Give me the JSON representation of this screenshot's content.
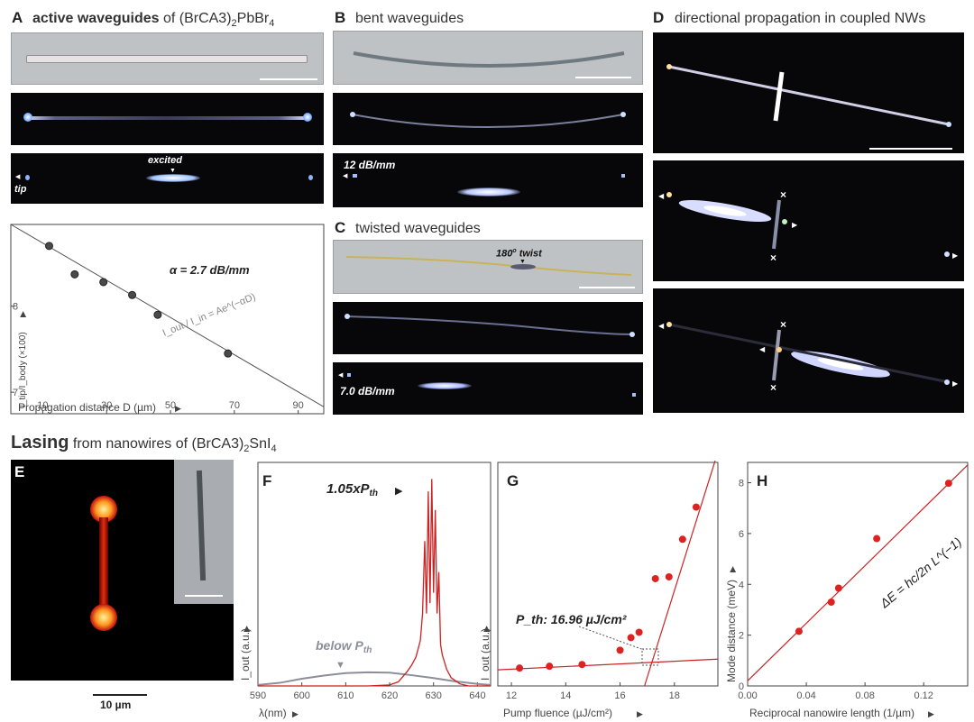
{
  "panels": {
    "A": {
      "letter": "A",
      "title_bold": "active waveguides",
      "title_rest": " of (BrCA3)",
      "title_sub": "2",
      "title_tail": "PbBr",
      "title_sub2": "4",
      "label_excited": "excited",
      "label_tip": "tip"
    },
    "B": {
      "letter": "B",
      "title": "bent waveguides",
      "loss_label": "12 dB/mm"
    },
    "C": {
      "letter": "C",
      "title": "twisted waveguides",
      "twist_label": "180",
      "twist_sup": "o",
      "twist_tail": " twist",
      "loss_label": "7.0 dB/mm"
    },
    "D": {
      "letter": "D",
      "title": "directional propagation in coupled NWs"
    },
    "E": {
      "letter": "E",
      "scalebar_label": "10 µm"
    },
    "F": {
      "letter": "F"
    },
    "G": {
      "letter": "G"
    },
    "H": {
      "letter": "H"
    }
  },
  "section2": {
    "title_bold": "Lasing",
    "title_rest": " from nanowires of (BrCA3)",
    "title_sub": "2",
    "title_tail": "SnI",
    "title_sub2": "4"
  },
  "chart_data": [
    {
      "id": "A-plot",
      "type": "scatter",
      "x": [
        12,
        20,
        29,
        38,
        46,
        68
      ],
      "y": [
        8.7,
        8.37,
        8.28,
        8.13,
        7.9,
        7.45
      ],
      "fit_line": {
        "x": [
          0,
          98
        ],
        "y": [
          8.95,
          6.83
        ]
      },
      "xlim": [
        0,
        98
      ],
      "ylim": [
        6.75,
        8.95
      ],
      "xticks": [
        10,
        30,
        50,
        70,
        90
      ],
      "yticks": [
        7,
        8
      ],
      "xlabel": "Propagation distance D (µm)",
      "ylabel": "I_tip/I_body (×100)",
      "annotation": "α = 2.7 dB/mm",
      "equation": "I_out / I_in = Ae^(−αD)"
    },
    {
      "id": "F",
      "type": "line",
      "xlim": [
        590,
        643
      ],
      "ylim": [
        0,
        1.08
      ],
      "xticks": [
        590,
        600,
        610,
        620,
        630,
        640
      ],
      "xlabel": "λ(nm)",
      "ylabel": "I_out (a.u.)",
      "series": [
        {
          "name": "1.05xP_th",
          "color": "#cc2222",
          "x": [
            590,
            600,
            610,
            615,
            620,
            622,
            624,
            625,
            626,
            627,
            627.5,
            628,
            628.4,
            628.8,
            629.2,
            629.6,
            630,
            630.4,
            630.8,
            631.2,
            631.6,
            632,
            633,
            634,
            636,
            638,
            643
          ],
          "y": [
            0,
            0,
            0,
            0,
            0.005,
            0.02,
            0.07,
            0.1,
            0.14,
            0.22,
            0.35,
            0.7,
            0.35,
            0.94,
            0.4,
            1.0,
            0.45,
            0.85,
            0.35,
            0.55,
            0.2,
            0.15,
            0.08,
            0.04,
            0.01,
            0,
            0
          ]
        },
        {
          "name": "below P_th",
          "color": "#8a8f9a",
          "x": [
            590,
            595,
            600,
            605,
            610,
            615,
            620,
            625,
            630,
            635,
            640,
            643
          ],
          "y": [
            0.005,
            0.015,
            0.035,
            0.05,
            0.062,
            0.066,
            0.064,
            0.052,
            0.038,
            0.022,
            0.01,
            0.005
          ]
        }
      ],
      "annotations": [
        {
          "text": "1.05xP",
          "sub": "th"
        },
        {
          "text": "below P",
          "sub": "th"
        }
      ]
    },
    {
      "id": "G",
      "type": "scatter",
      "x": [
        12.3,
        13.4,
        14.6,
        16.0,
        16.4,
        16.7,
        17.3,
        17.8,
        18.3,
        18.8
      ],
      "y": [
        0.1,
        0.11,
        0.12,
        0.2,
        0.27,
        0.3,
        0.6,
        0.61,
        0.82,
        1.0
      ],
      "fit_lines": [
        {
          "x": [
            11.5,
            19.6
          ],
          "y": [
            0.09,
            0.15
          ]
        },
        {
          "x": [
            16.9,
            19.5
          ],
          "y": [
            0.0,
            1.26
          ]
        }
      ],
      "xlim": [
        11.5,
        19.6
      ],
      "ylim": [
        0,
        1.25
      ],
      "xticks": [
        12,
        14,
        16,
        18
      ],
      "xlabel": "Pump fluence (µJ/cm²)",
      "ylabel": "I_out (a.u.)",
      "annotation": "P_th: 16.96 µJ/cm²"
    },
    {
      "id": "H",
      "type": "scatter",
      "x": [
        0.035,
        0.057,
        0.062,
        0.088,
        0.137
      ],
      "y": [
        2.15,
        3.3,
        3.85,
        5.8,
        7.98
      ],
      "fit_line": {
        "x": [
          0,
          0.15
        ],
        "y": [
          0.2,
          8.7
        ]
      },
      "xlim": [
        0,
        0.15
      ],
      "ylim": [
        0,
        8.8
      ],
      "xticks": [
        0,
        0.04,
        0.08,
        0.12
      ],
      "yticks": [
        0,
        2,
        4,
        6,
        8
      ],
      "xlabel": "Reciprocal nanowire length (1/µm)",
      "ylabel": "Mode distance (meV)",
      "equation": "ΔE = hc/2n L^(−1)"
    }
  ],
  "colors": {
    "fit": "#cc2222",
    "point": "#dd2222",
    "grey_fit": "#555555",
    "dark_bg": "#07070a"
  }
}
